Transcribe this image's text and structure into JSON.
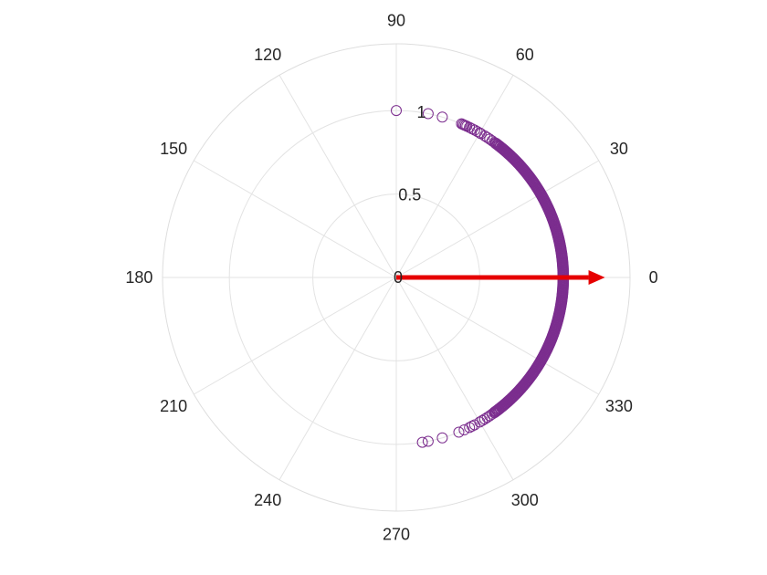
{
  "chart_data": {
    "type": "scatter",
    "coordinate_system": "polar",
    "theta_unit": "degrees",
    "theta_ticks": [
      "0",
      "30",
      "60",
      "90",
      "120",
      "150",
      "180",
      "210",
      "240",
      "270",
      "300",
      "330"
    ],
    "theta_tick_values": [
      0,
      30,
      60,
      90,
      120,
      150,
      180,
      210,
      240,
      270,
      300,
      330
    ],
    "r_ticks": [
      "0",
      "0.5",
      "1"
    ],
    "r_tick_values": [
      0,
      0.5,
      1
    ],
    "rlim": [
      0,
      1.4
    ],
    "grid": true,
    "legend": "none",
    "series": [
      {
        "marker": "open-circle",
        "color": "#7B2D8E",
        "theta": [
          90,
          79,
          74,
          67,
          66.5,
          66,
          65.5,
          65,
          64,
          63,
          62,
          61,
          60,
          59.5,
          58,
          57,
          56,
          55,
          54,
          50,
          45,
          40,
          35,
          30,
          25,
          20,
          15,
          10,
          5,
          0,
          -5,
          -10,
          -15,
          -20,
          -25,
          -30,
          -35,
          -40,
          -45,
          -50,
          -54,
          -55,
          -56,
          -57,
          -58,
          -59,
          -60,
          -62,
          -63,
          -64,
          -66,
          -68,
          -74,
          -79,
          -81
        ],
        "r": [
          1,
          1,
          1,
          1,
          1,
          1,
          1,
          1,
          1,
          1,
          1,
          1,
          1,
          1,
          1,
          1,
          1,
          1,
          1,
          1,
          1,
          1,
          1,
          1,
          1,
          1,
          1,
          1,
          1,
          1,
          1,
          1,
          1,
          1,
          1,
          1,
          1,
          1,
          1,
          1,
          1,
          1,
          1,
          1,
          1,
          1,
          1,
          1,
          1,
          1,
          1,
          1,
          1,
          1,
          1
        ]
      }
    ],
    "vector": {
      "theta": 0,
      "r": 1.25,
      "color": "#E60000"
    }
  }
}
